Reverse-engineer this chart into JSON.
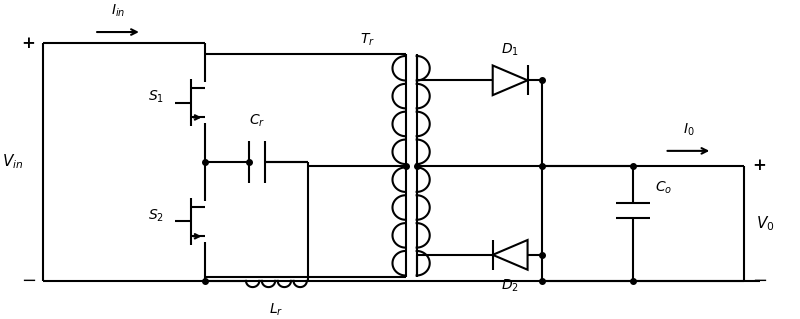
{
  "bg_color": "#ffffff",
  "line_color": "#000000",
  "line_width": 1.5,
  "figsize": [
    8.0,
    3.19
  ],
  "dpi": 100,
  "xlim": [
    0,
    10.0
  ],
  "ylim": [
    0,
    4.0
  ]
}
